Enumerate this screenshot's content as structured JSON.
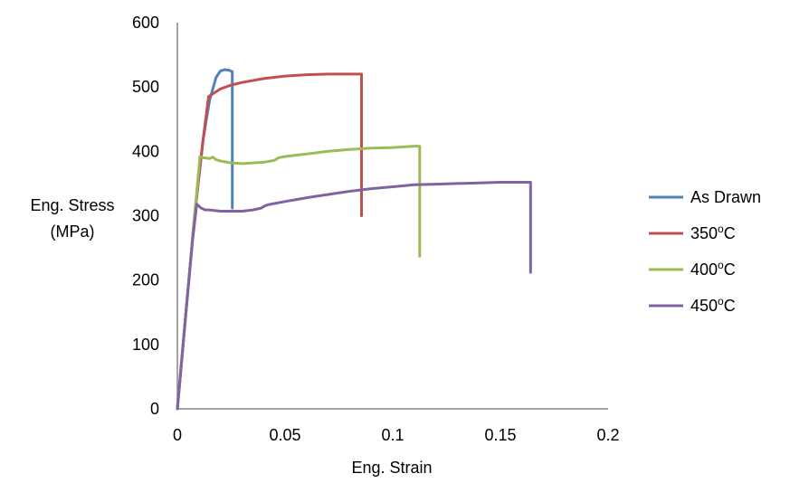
{
  "chart_data": {
    "type": "line",
    "title": "",
    "xlabel": "Eng. Strain",
    "ylabel_lines": [
      "Eng. Stress",
      "(MPa)"
    ],
    "xlim": [
      0,
      0.2
    ],
    "ylim": [
      0,
      600
    ],
    "x_ticks": [
      0,
      0.05,
      0.1,
      0.15,
      0.2
    ],
    "x_tick_labels": [
      "0",
      "0.05",
      "0.1",
      "0.15",
      "0.2"
    ],
    "y_ticks": [
      0,
      100,
      200,
      300,
      400,
      500,
      600
    ],
    "y_tick_labels": [
      "0",
      "100",
      "200",
      "300",
      "400",
      "500",
      "600"
    ],
    "grid": false,
    "legend_position": "right",
    "series": [
      {
        "name": "As Drawn",
        "label_main": "As Drawn",
        "label_sup": "",
        "label_suffix": "",
        "color": "#4F81BD",
        "points": [
          [
            0,
            0
          ],
          [
            0.004,
            150
          ],
          [
            0.008,
            300
          ],
          [
            0.012,
            420
          ],
          [
            0.015,
            480
          ],
          [
            0.018,
            515
          ],
          [
            0.02,
            525
          ],
          [
            0.022,
            527
          ],
          [
            0.024,
            526
          ],
          [
            0.0255,
            524
          ],
          [
            0.0255,
            480
          ],
          [
            0.0255,
            400
          ],
          [
            0.0255,
            312
          ]
        ]
      },
      {
        "name": "350°C",
        "label_main": "350",
        "label_sup": "o",
        "label_suffix": "C",
        "color": "#C0504D",
        "points": [
          [
            0,
            0
          ],
          [
            0.004,
            150
          ],
          [
            0.008,
            300
          ],
          [
            0.012,
            420
          ],
          [
            0.0145,
            485
          ],
          [
            0.02,
            497
          ],
          [
            0.025,
            503
          ],
          [
            0.03,
            507
          ],
          [
            0.04,
            513
          ],
          [
            0.05,
            517
          ],
          [
            0.06,
            519
          ],
          [
            0.07,
            520
          ],
          [
            0.08,
            520
          ],
          [
            0.0855,
            520
          ],
          [
            0.0855,
            450
          ],
          [
            0.0855,
            370
          ],
          [
            0.0855,
            300
          ]
        ]
      },
      {
        "name": "400°C",
        "label_main": "400",
        "label_sup": "o",
        "label_suffix": "C",
        "color": "#9BBB59",
        "points": [
          [
            0,
            0
          ],
          [
            0.004,
            150
          ],
          [
            0.008,
            300
          ],
          [
            0.0105,
            392
          ],
          [
            0.012,
            390
          ],
          [
            0.015,
            389
          ],
          [
            0.0165,
            391
          ],
          [
            0.018,
            387
          ],
          [
            0.02,
            385
          ],
          [
            0.025,
            382
          ],
          [
            0.03,
            381
          ],
          [
            0.035,
            382
          ],
          [
            0.04,
            383
          ],
          [
            0.045,
            386
          ],
          [
            0.047,
            390
          ],
          [
            0.05,
            392
          ],
          [
            0.06,
            396
          ],
          [
            0.07,
            400
          ],
          [
            0.08,
            403
          ],
          [
            0.09,
            405
          ],
          [
            0.1,
            406
          ],
          [
            0.105,
            407
          ],
          [
            0.11,
            408
          ],
          [
            0.1125,
            408
          ],
          [
            0.1125,
            350
          ],
          [
            0.1125,
            290
          ],
          [
            0.1125,
            237
          ]
        ]
      },
      {
        "name": "450°C",
        "label_main": "450",
        "label_sup": "o",
        "label_suffix": "C",
        "color": "#8064A2",
        "points": [
          [
            0,
            0
          ],
          [
            0.004,
            150
          ],
          [
            0.007,
            260
          ],
          [
            0.009,
            318
          ],
          [
            0.011,
            312
          ],
          [
            0.013,
            309
          ],
          [
            0.015,
            309
          ],
          [
            0.02,
            307
          ],
          [
            0.025,
            307
          ],
          [
            0.03,
            307
          ],
          [
            0.035,
            309
          ],
          [
            0.039,
            312
          ],
          [
            0.0405,
            315
          ],
          [
            0.042,
            317
          ],
          [
            0.05,
            322
          ],
          [
            0.06,
            328
          ],
          [
            0.07,
            333
          ],
          [
            0.08,
            338
          ],
          [
            0.09,
            342
          ],
          [
            0.1,
            345
          ],
          [
            0.11,
            348
          ],
          [
            0.12,
            349
          ],
          [
            0.13,
            350
          ],
          [
            0.14,
            351
          ],
          [
            0.15,
            352
          ],
          [
            0.16,
            352
          ],
          [
            0.164,
            352
          ],
          [
            0.164,
            300
          ],
          [
            0.164,
            250
          ],
          [
            0.164,
            212
          ]
        ]
      }
    ]
  }
}
